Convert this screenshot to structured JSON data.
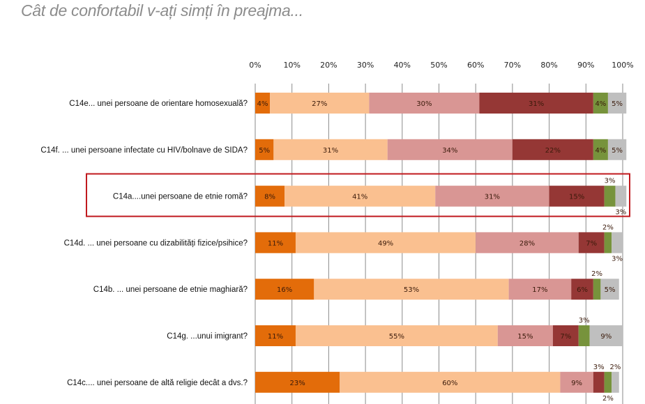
{
  "title": "Cât de confortabil v-ați simți în preajma...",
  "chart_data": {
    "type": "bar",
    "orientation": "horizontal",
    "stacked": true,
    "title": "Cât de confortabil v-ați simți în preajma...",
    "xlim": [
      0,
      100
    ],
    "x_ticks": [
      "0%",
      "10%",
      "20%",
      "30%",
      "40%",
      "50%",
      "60%",
      "70%",
      "80%",
      "90%",
      "100%"
    ],
    "grid": true,
    "highlighted_category": "C14a....unei persoane de etnie romă?",
    "highlight_color": "#C0191E",
    "categories": [
      "C14e... unei persoane de orientare homosexuală?",
      "C14f. ... unei persoane infectate cu HIV/bolnave de SIDA?",
      "C14a....unei persoane de etnie romă?",
      "C14d. ... unei persoane cu dizabilități fizice/psihice?",
      "C14b. ... unei persoane de etnie maghiară?",
      "C14g. ...unui imigrant?",
      "C14c.... unei persoane de altă religie decât a dvs.?"
    ],
    "series": [
      {
        "color": "#E36C0A",
        "values": [
          4,
          5,
          8,
          11,
          16,
          11,
          23
        ]
      },
      {
        "color": "#FAC090",
        "values": [
          27,
          31,
          41,
          49,
          53,
          55,
          60
        ]
      },
      {
        "color": "#D99694",
        "values": [
          30,
          34,
          31,
          28,
          17,
          15,
          9
        ]
      },
      {
        "color": "#953735",
        "values": [
          31,
          22,
          15,
          7,
          6,
          7,
          3
        ]
      },
      {
        "color": "#77933C",
        "values": [
          4,
          4,
          3,
          2,
          2,
          3,
          2
        ]
      },
      {
        "color": "#BFBFBF",
        "values": [
          5,
          5,
          3,
          3,
          5,
          9,
          2
        ]
      }
    ]
  }
}
